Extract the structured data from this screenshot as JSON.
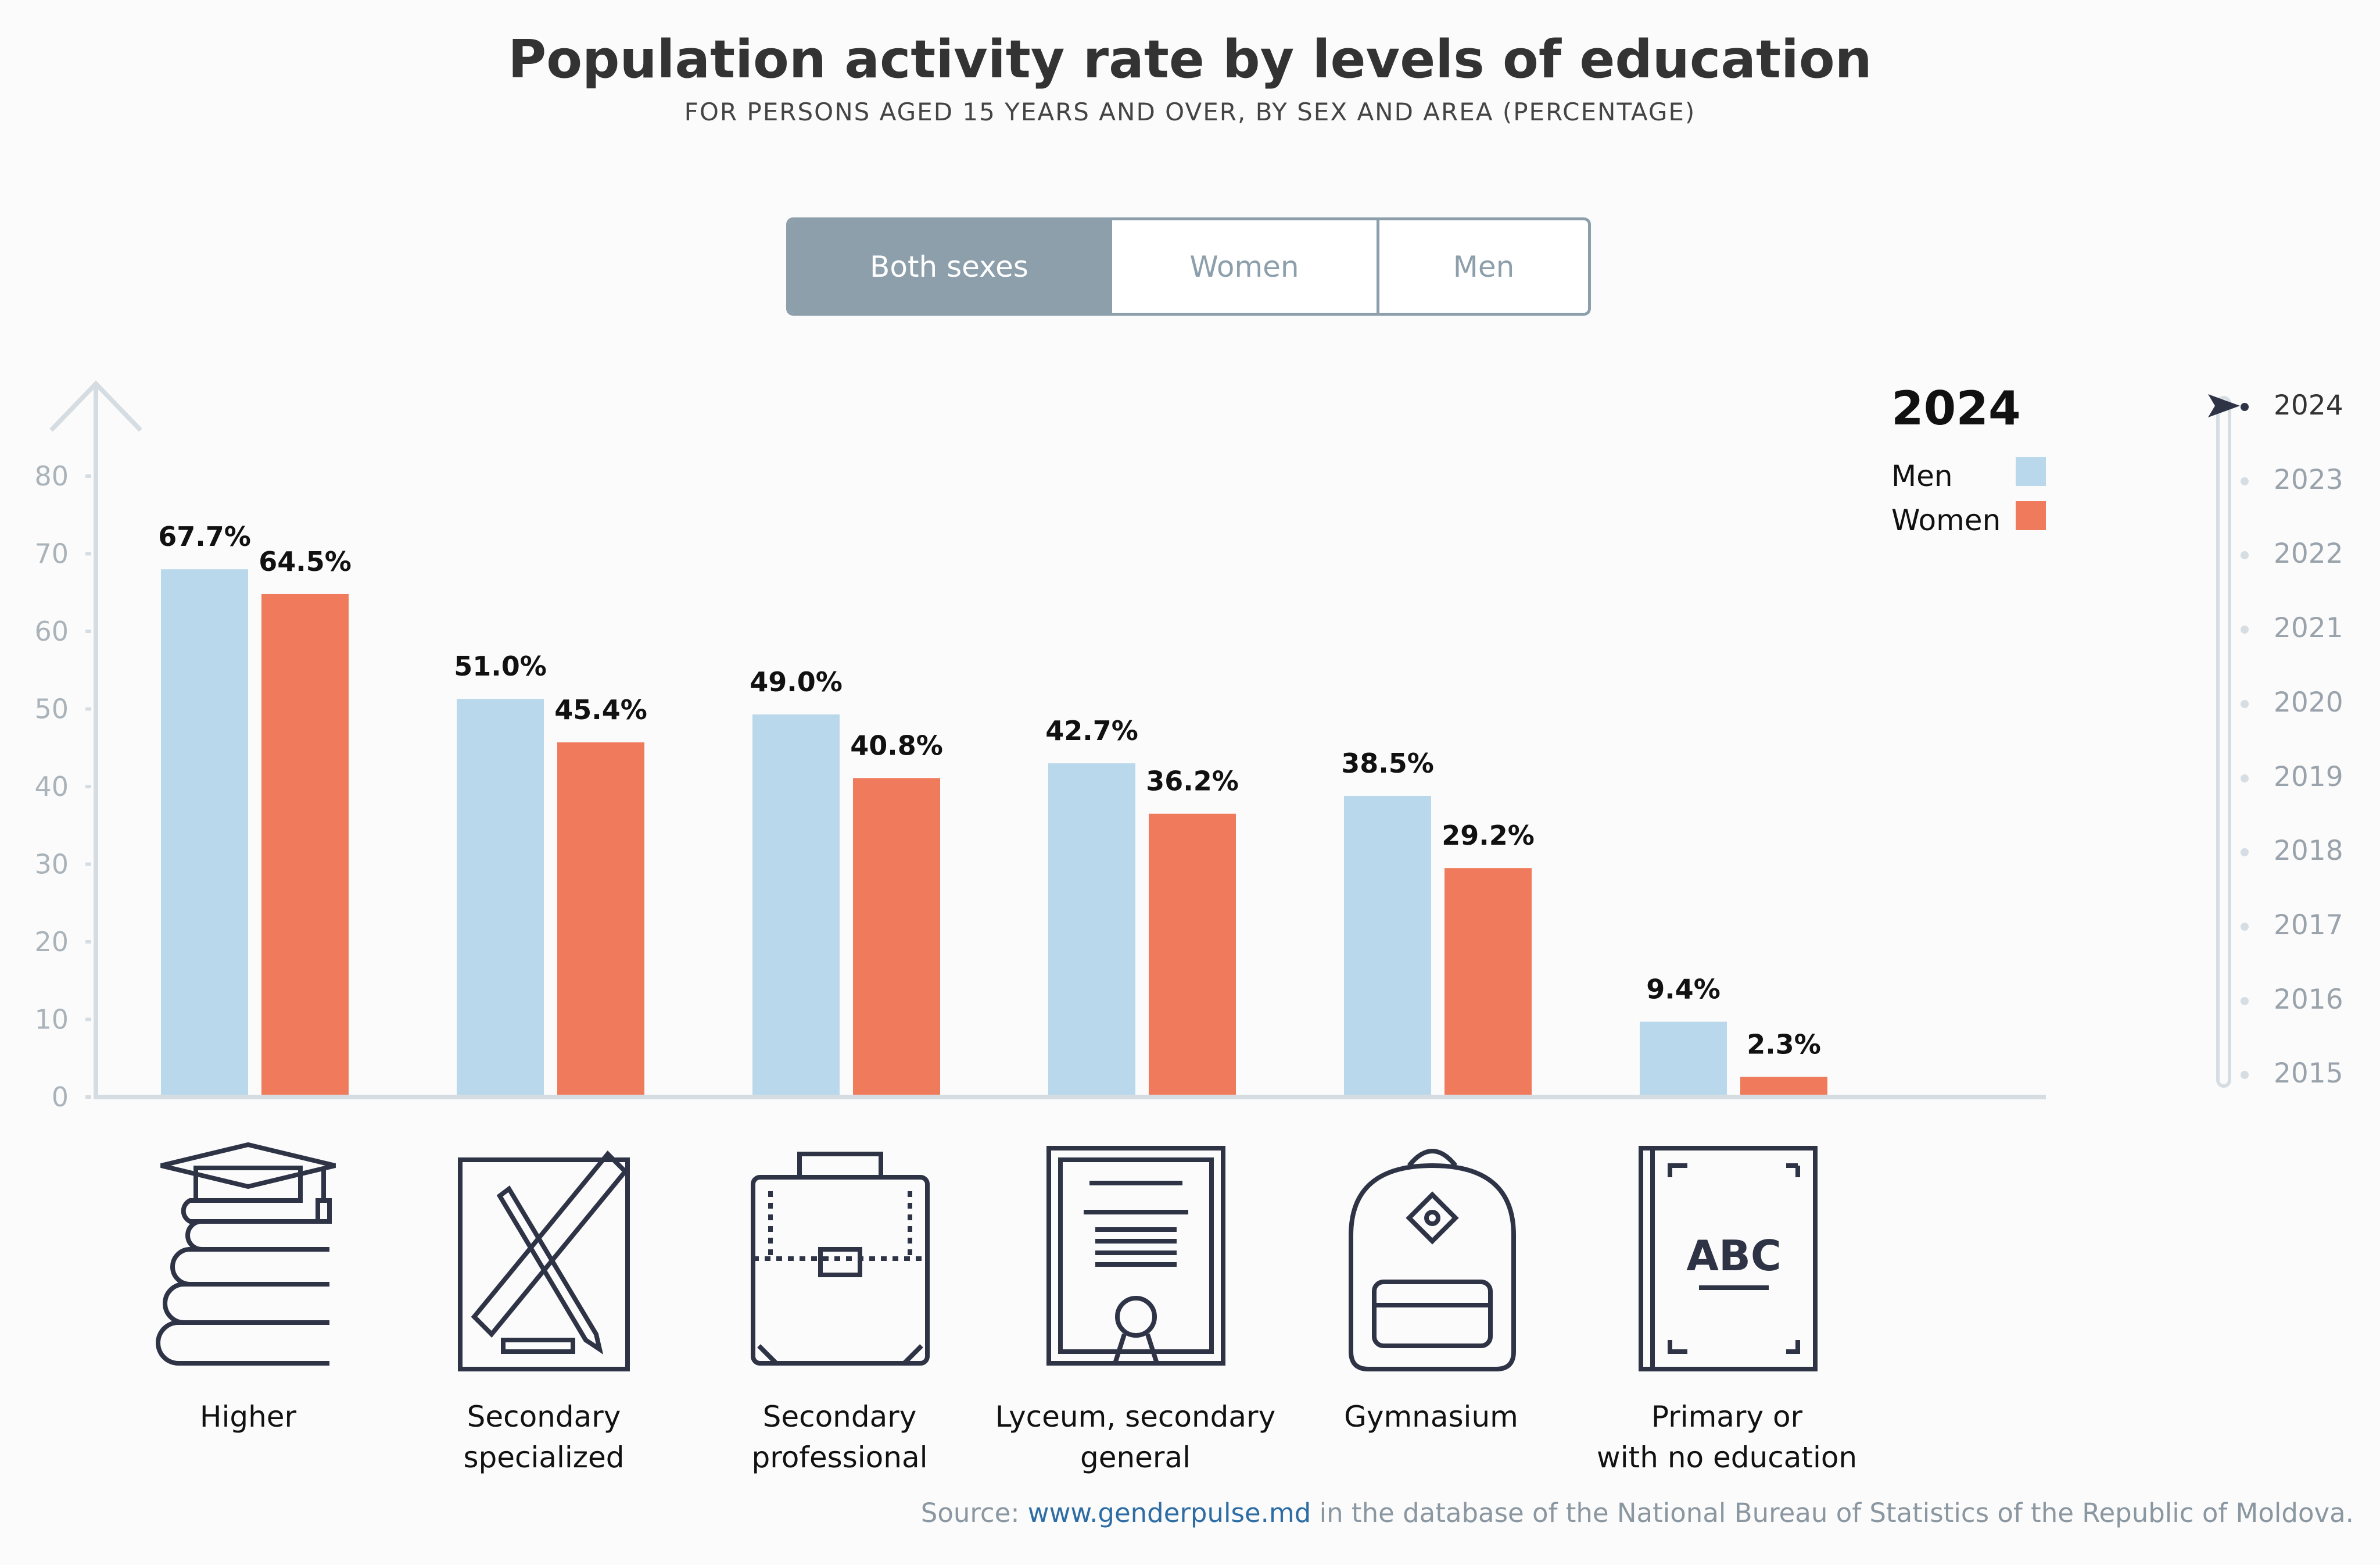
{
  "title": "Population activity rate by levels of education",
  "subtitle": "FOR PERSONS AGED 15 YEARS AND OVER, BY SEX AND AREA (PERCENTAGE)",
  "toggle": {
    "options": [
      "Both sexes",
      "Women",
      "Men"
    ],
    "selected": "Both sexes"
  },
  "timeline": {
    "years": [
      "2024",
      "2023",
      "2022",
      "2021",
      "2020",
      "2019",
      "2018",
      "2017",
      "2016",
      "2015"
    ],
    "selected": "2024"
  },
  "source": {
    "prefix": "Source: ",
    "link": "www.genderpulse.md",
    "suffix": " in the database of the National Bureau of Statistics of the Republic of Moldova."
  },
  "colors": {
    "men": "#b9d8eb",
    "women": "#ef7b5c",
    "axis": "#d5dde3",
    "toggle": "#8c9fab"
  },
  "chart_data": {
    "type": "bar",
    "legend_title": "2024",
    "legend_position": "top-right",
    "categories": [
      "Higher",
      "Secondary specialized",
      "Secondary professional",
      "Lyceum, secondary general",
      "Gymnasium",
      "Primary or with no education"
    ],
    "category_lines": [
      [
        "Higher"
      ],
      [
        "Secondary",
        "specialized"
      ],
      [
        "Secondary",
        "professional"
      ],
      [
        "Lyceum, secondary",
        "general"
      ],
      [
        "Gymnasium"
      ],
      [
        "Primary or",
        "with no education"
      ]
    ],
    "icons": [
      "graduation-books-icon",
      "ruler-pencil-icon",
      "briefcase-icon",
      "diploma-icon",
      "backpack-icon",
      "abc-book-icon"
    ],
    "series": [
      {
        "name": "Men",
        "values": [
          67.7,
          51.0,
          49.0,
          42.7,
          38.5,
          9.4
        ],
        "labels": [
          "67.7%",
          "51.0%",
          "49.0%",
          "42.7%",
          "38.5%",
          "9.4%"
        ]
      },
      {
        "name": "Women",
        "values": [
          64.5,
          45.4,
          40.8,
          36.2,
          29.2,
          2.3
        ],
        "labels": [
          "64.5%",
          "45.4%",
          "40.8%",
          "36.2%",
          "29.2%",
          "2.3%"
        ]
      }
    ],
    "yticks": [
      "0",
      "10",
      "20",
      "30",
      "40",
      "50",
      "60",
      "70",
      "80"
    ],
    "ylim": [
      0,
      80
    ],
    "grid": false
  }
}
